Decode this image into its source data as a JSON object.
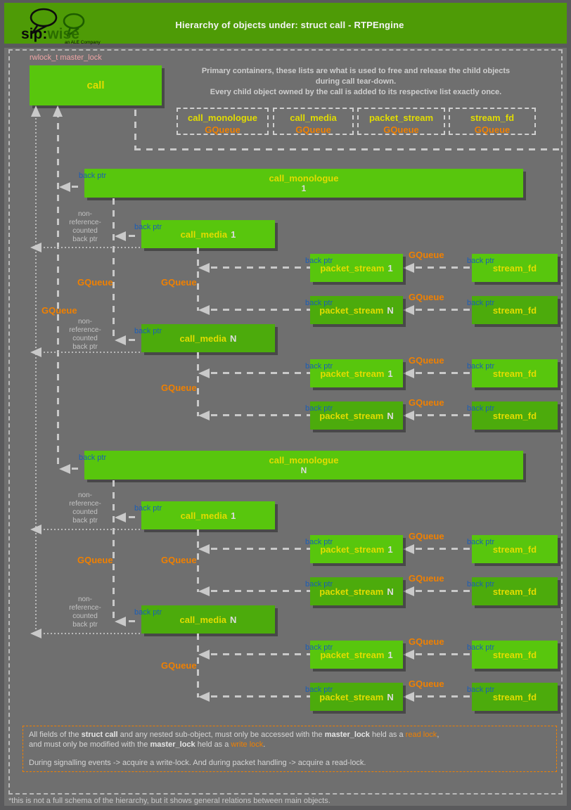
{
  "header": {
    "title": "Hierarchy of objects under: struct call - RTPEngine",
    "logo": {
      "sip": "sip:",
      "wise": "wise",
      "tagline": "an ALE Company"
    }
  },
  "top": {
    "master_lock": "rwlock_t master_lock",
    "call": "call",
    "description": [
      "Primary containers, these lists are what is used to free and release the child objects",
      "during call tear-down.",
      "Every child object owned by the call is added to its respective list exactly once."
    ],
    "containers": [
      {
        "name": "call_monologue",
        "type": "GQueue"
      },
      {
        "name": "call_media",
        "type": "GQueue"
      },
      {
        "name": "packet_stream",
        "type": "GQueue"
      },
      {
        "name": "stream_fd",
        "type": "GQueue"
      }
    ]
  },
  "labels": {
    "back_ptr": "back ptr",
    "gqueue": "GQueue",
    "non_ref": "non-\nreference-\ncounted\nback ptr"
  },
  "tree": {
    "monologues": [
      {
        "name": "call_monologue",
        "index": "1"
      },
      {
        "name": "call_monologue",
        "index": "N"
      }
    ],
    "media": [
      {
        "name": "call_media",
        "index": "1"
      },
      {
        "name": "call_media",
        "index": "N"
      },
      {
        "name": "call_media",
        "index": "1"
      },
      {
        "name": "call_media",
        "index": "N"
      }
    ],
    "rows": [
      {
        "packet_stream": "packet_stream",
        "index": "1",
        "stream_fd": "stream_fd"
      },
      {
        "packet_stream": "packet_stream",
        "index": "N",
        "stream_fd": "stream_fd"
      },
      {
        "packet_stream": "packet_stream",
        "index": "1",
        "stream_fd": "stream_fd"
      },
      {
        "packet_stream": "packet_stream",
        "index": "N",
        "stream_fd": "stream_fd"
      },
      {
        "packet_stream": "packet_stream",
        "index": "1",
        "stream_fd": "stream_fd"
      },
      {
        "packet_stream": "packet_stream",
        "index": "N",
        "stream_fd": "stream_fd"
      },
      {
        "packet_stream": "packet_stream",
        "index": "1",
        "stream_fd": "stream_fd"
      },
      {
        "packet_stream": "packet_stream",
        "index": "N",
        "stream_fd": "stream_fd"
      }
    ]
  },
  "note": {
    "l1a": "All fields of the ",
    "l1b": "struct call",
    "l1c": " and any nested sub-object, must only be accessed with the ",
    "l1d": "master_lock",
    "l1e": " held as a ",
    "l1f": "read lock",
    "l1g": ",",
    "l2a": "and must only be modified with the ",
    "l2b": "master_lock",
    "l2c": " held as a ",
    "l2d": "write lock",
    "l2e": ".",
    "l3": "During signalling events -> acquire a write-lock. And during packet handling -> acquire a read-lock."
  },
  "footer": "*this is not a full schema of the hierarchy, but it shows general relations between main objects.",
  "colors": {
    "header_green": "#4e9b06",
    "box_green": "#58c60d",
    "box_green_dark": "#4cab0c",
    "label_yellow": "#e2dc00",
    "gqueue_orange": "#f08000",
    "backptr_blue": "#1b5eb5",
    "masterlock_pink": "#eda4a4",
    "line_gray": "#c9c9c9"
  }
}
